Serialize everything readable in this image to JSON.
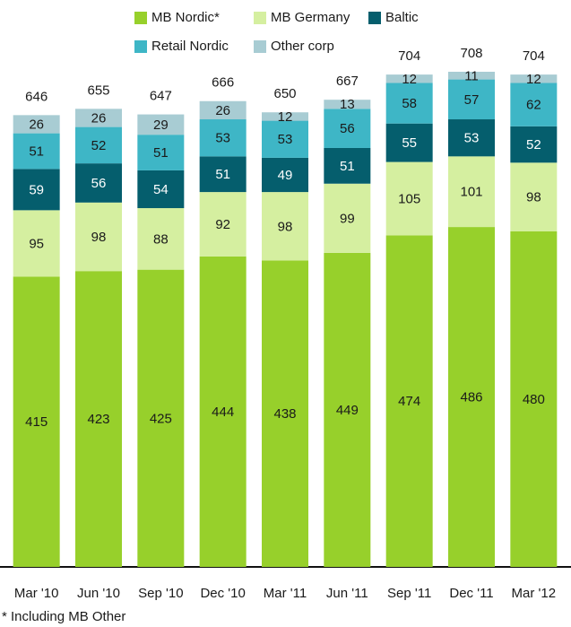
{
  "chart_data": {
    "type": "stacked_bar",
    "categories": [
      "Mar '10",
      "Jun '10",
      "Sep '10",
      "Dec '10",
      "Mar '11",
      "Jun '11",
      "Sep '11",
      "Dec '11",
      "Mar '12"
    ],
    "series": [
      {
        "name": "MB Nordic*",
        "color": "#97d02b",
        "values": [
          415,
          423,
          425,
          444,
          438,
          449,
          474,
          486,
          480
        ]
      },
      {
        "name": "MB Germany",
        "color": "#d5efa0",
        "values": [
          95,
          98,
          88,
          92,
          98,
          99,
          105,
          101,
          98
        ]
      },
      {
        "name": "Baltic",
        "color": "#055e6d",
        "values": [
          59,
          56,
          54,
          51,
          49,
          51,
          55,
          53,
          52
        ]
      },
      {
        "name": "Retail Nordic",
        "color": "#3eb6c6",
        "values": [
          51,
          52,
          51,
          53,
          53,
          56,
          58,
          57,
          62
        ]
      },
      {
        "name": "Other corp",
        "color": "#a8ccd3",
        "values": [
          26,
          26,
          29,
          26,
          12,
          13,
          12,
          11,
          12
        ]
      }
    ],
    "totals": [
      646,
      655,
      647,
      666,
      650,
      667,
      704,
      708,
      704
    ],
    "footnote": "* Including MB Other"
  }
}
